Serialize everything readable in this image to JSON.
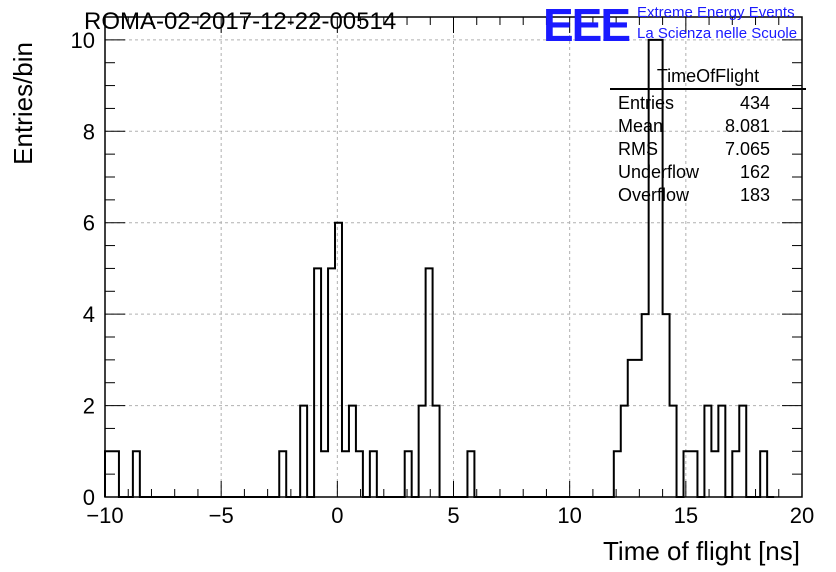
{
  "header": {
    "run_title": "ROMA-02-2017-12-22-00514",
    "logo_text": "EEE",
    "logo_line1": "Extreme Energy Events",
    "logo_line2": "La Scienza nelle Scuole"
  },
  "stats_box": {
    "name": "TimeOfFlight",
    "rows": [
      {
        "label": "Entries",
        "value": "434"
      },
      {
        "label": "Mean",
        "value": "8.081"
      },
      {
        "label": "RMS",
        "value": "7.065"
      },
      {
        "label": "Underflow",
        "value": "162"
      },
      {
        "label": "Overflow",
        "value": "183"
      }
    ]
  },
  "colors": {
    "logo": "#1a1aff",
    "grid": "#b0b0b0",
    "line": "#000000"
  },
  "chart_data": {
    "type": "bar",
    "style": "step-histogram",
    "xlabel": "Time of flight [ns]",
    "ylabel": "Entries/bin",
    "xlim": [
      -10,
      20
    ],
    "ylim": [
      0,
      10.5
    ],
    "bin_width": 0.3,
    "x_ticks": [
      -10,
      -5,
      0,
      5,
      10,
      15,
      20
    ],
    "y_ticks": [
      0,
      2,
      4,
      6,
      8,
      10
    ],
    "grid": true,
    "bins": [
      {
        "x": -10.0,
        "y": 1
      },
      {
        "x": -9.7,
        "y": 1
      },
      {
        "x": -9.4,
        "y": 0
      },
      {
        "x": -9.1,
        "y": 0
      },
      {
        "x": -8.8,
        "y": 1
      },
      {
        "x": -8.5,
        "y": 0
      },
      {
        "x": -8.2,
        "y": 0
      },
      {
        "x": -7.9,
        "y": 0
      },
      {
        "x": -7.6,
        "y": 0
      },
      {
        "x": -7.3,
        "y": 0
      },
      {
        "x": -7.0,
        "y": 0
      },
      {
        "x": -6.7,
        "y": 0
      },
      {
        "x": -6.4,
        "y": 0
      },
      {
        "x": -6.1,
        "y": 0
      },
      {
        "x": -5.8,
        "y": 0
      },
      {
        "x": -5.5,
        "y": 0
      },
      {
        "x": -5.2,
        "y": 0
      },
      {
        "x": -4.9,
        "y": 0
      },
      {
        "x": -4.6,
        "y": 0
      },
      {
        "x": -4.3,
        "y": 0
      },
      {
        "x": -4.0,
        "y": 0
      },
      {
        "x": -3.7,
        "y": 0
      },
      {
        "x": -3.4,
        "y": 0
      },
      {
        "x": -3.1,
        "y": 0
      },
      {
        "x": -2.8,
        "y": 0
      },
      {
        "x": -2.5,
        "y": 1
      },
      {
        "x": -2.2,
        "y": 0
      },
      {
        "x": -1.9,
        "y": 0
      },
      {
        "x": -1.6,
        "y": 2
      },
      {
        "x": -1.3,
        "y": 0
      },
      {
        "x": -1.0,
        "y": 5
      },
      {
        "x": -0.7,
        "y": 1
      },
      {
        "x": -0.4,
        "y": 5
      },
      {
        "x": -0.1,
        "y": 6
      },
      {
        "x": 0.2,
        "y": 1
      },
      {
        "x": 0.5,
        "y": 2
      },
      {
        "x": 0.8,
        "y": 1
      },
      {
        "x": 1.1,
        "y": 0
      },
      {
        "x": 1.4,
        "y": 1
      },
      {
        "x": 1.7,
        "y": 0
      },
      {
        "x": 2.0,
        "y": 0
      },
      {
        "x": 2.3,
        "y": 0
      },
      {
        "x": 2.6,
        "y": 0
      },
      {
        "x": 2.9,
        "y": 1
      },
      {
        "x": 3.2,
        "y": 0
      },
      {
        "x": 3.5,
        "y": 2
      },
      {
        "x": 3.8,
        "y": 5
      },
      {
        "x": 4.1,
        "y": 2
      },
      {
        "x": 4.4,
        "y": 0
      },
      {
        "x": 4.7,
        "y": 0
      },
      {
        "x": 5.0,
        "y": 0
      },
      {
        "x": 5.3,
        "y": 0
      },
      {
        "x": 5.6,
        "y": 1
      },
      {
        "x": 5.9,
        "y": 0
      },
      {
        "x": 6.2,
        "y": 0
      },
      {
        "x": 6.5,
        "y": 0
      },
      {
        "x": 6.8,
        "y": 0
      },
      {
        "x": 7.1,
        "y": 0
      },
      {
        "x": 7.4,
        "y": 0
      },
      {
        "x": 7.7,
        "y": 0
      },
      {
        "x": 8.0,
        "y": 0
      },
      {
        "x": 8.3,
        "y": 0
      },
      {
        "x": 8.6,
        "y": 0
      },
      {
        "x": 8.9,
        "y": 0
      },
      {
        "x": 9.2,
        "y": 0
      },
      {
        "x": 9.5,
        "y": 0
      },
      {
        "x": 9.8,
        "y": 0
      },
      {
        "x": 10.1,
        "y": 0
      },
      {
        "x": 10.4,
        "y": 0
      },
      {
        "x": 10.7,
        "y": 0
      },
      {
        "x": 11.0,
        "y": 0
      },
      {
        "x": 11.3,
        "y": 0
      },
      {
        "x": 11.6,
        "y": 0
      },
      {
        "x": 11.9,
        "y": 1
      },
      {
        "x": 12.2,
        "y": 2
      },
      {
        "x": 12.5,
        "y": 3
      },
      {
        "x": 12.8,
        "y": 3
      },
      {
        "x": 13.1,
        "y": 4
      },
      {
        "x": 13.4,
        "y": 10
      },
      {
        "x": 13.7,
        "y": 10
      },
      {
        "x": 14.0,
        "y": 4
      },
      {
        "x": 14.3,
        "y": 2
      },
      {
        "x": 14.6,
        "y": 0
      },
      {
        "x": 14.9,
        "y": 1
      },
      {
        "x": 15.2,
        "y": 1
      },
      {
        "x": 15.5,
        "y": 0
      },
      {
        "x": 15.8,
        "y": 2
      },
      {
        "x": 16.1,
        "y": 1
      },
      {
        "x": 16.4,
        "y": 2
      },
      {
        "x": 16.7,
        "y": 0
      },
      {
        "x": 17.0,
        "y": 1
      },
      {
        "x": 17.3,
        "y": 2
      },
      {
        "x": 17.6,
        "y": 0
      },
      {
        "x": 17.9,
        "y": 0
      },
      {
        "x": 18.2,
        "y": 1
      },
      {
        "x": 18.5,
        "y": 0
      }
    ]
  }
}
